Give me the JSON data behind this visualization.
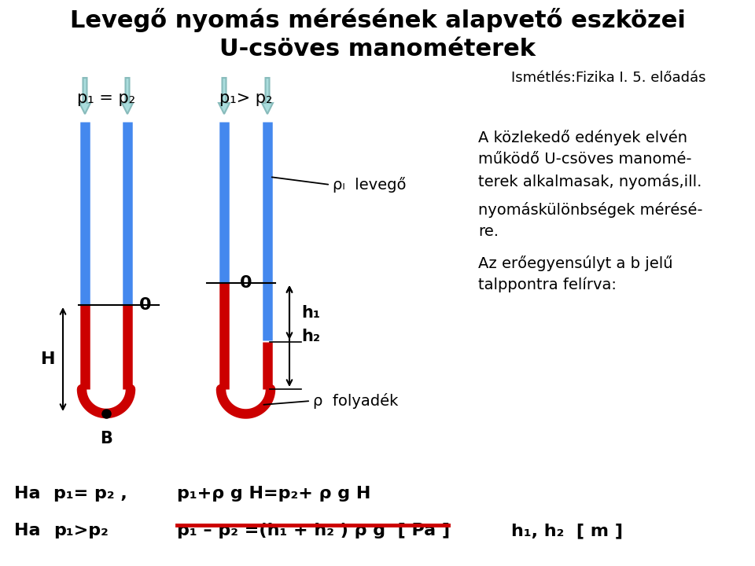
{
  "title_line1": "Levegő nyomás mérésének alapvető eszközei",
  "title_line2": "U-csöves manométerek",
  "subtitle": "Ismétlés:Fizika I. 5. előadás",
  "label_p1eq": "p₁ = p₂",
  "label_p1gt": "p₁> p₂",
  "label_rho_l": "ρₗ  levegő",
  "label_0": "0",
  "label_h1": "h₁",
  "label_h2": "h₂",
  "label_B": "B",
  "label_H": "H",
  "label_rho_folyadek": "ρ  folyadék",
  "text_r1": "A közlekedő edények elvén",
  "text_r2": "működő U-csöves manomé-",
  "text_r3": "terek alkalmasak, nyomás,ill.",
  "text_r4": "nyomáskülönbségek mérésé-",
  "text_r5": "re.",
  "text_r6": "Az erőegyensúlyt a b jelű",
  "text_r7": "talppontra felírva:",
  "eq1a": "Ha",
  "eq1b": "p₁= p₂ ,",
  "eq1c": "p₁+ρ g H=p₂+ ρ g H",
  "eq2a": "Ha",
  "eq2b": "p₁>p₂",
  "eq2c": "p₁ – p₂ =(h₁ + h₂ ) ρ g  [ Pa ]",
  "eq2d": "h₁, h₂  [ m ]",
  "blue": "#4488EE",
  "red": "#CC0000",
  "arrow_fill": "#AADDDD",
  "arrow_edge": "#88BBBB",
  "black": "#000000",
  "white": "#FFFFFF"
}
